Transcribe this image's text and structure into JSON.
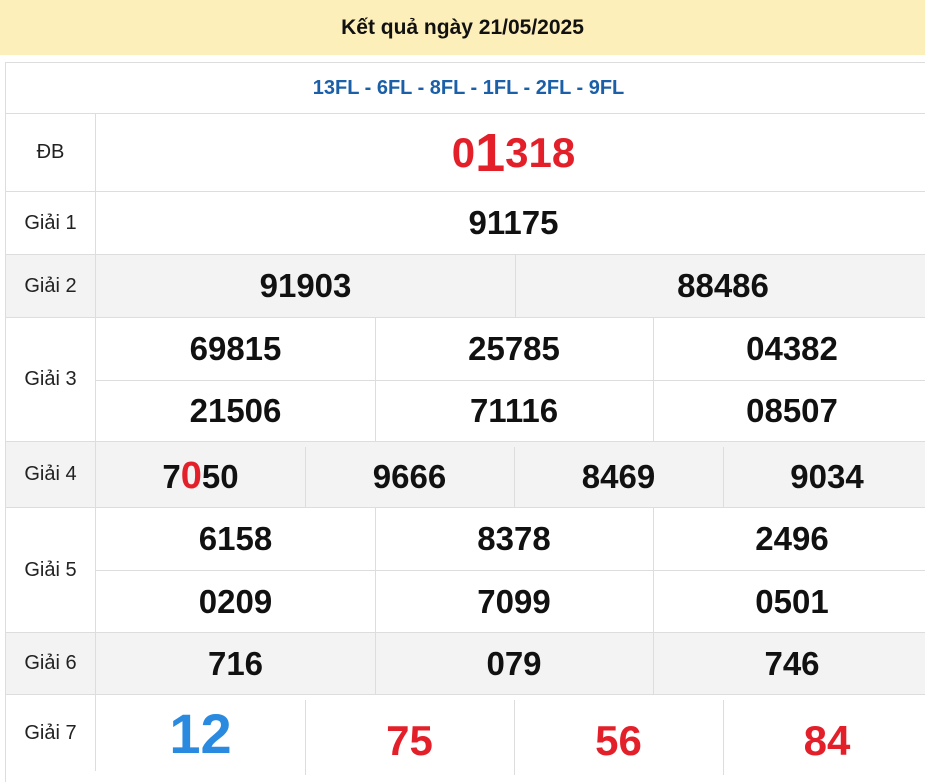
{
  "header": {
    "title": "Kết quả ngày 21/05/2025"
  },
  "codes": "13FL - 6FL - 8FL - 1FL - 2FL - 9FL",
  "colors": {
    "header_bg": "#fdefb9",
    "codes": "#1a5fa8",
    "special": "#e3202a",
    "giai7_first": "#2a8ae0"
  },
  "db": {
    "label": "ĐB",
    "p1": "0",
    "p2": "1",
    "p3": "318"
  },
  "g1": {
    "label": "Giải 1",
    "values": [
      "91175"
    ]
  },
  "g2": {
    "label": "Giải 2",
    "values": [
      "91903",
      "88486"
    ]
  },
  "g3": {
    "label": "Giải 3",
    "values": [
      "69815",
      "25785",
      "04382",
      "21506",
      "71116",
      "08507"
    ]
  },
  "g4": {
    "label": "Giải 4",
    "first": {
      "a": "7",
      "b": "0",
      "c": "50"
    },
    "values": [
      "7050",
      "9666",
      "8469",
      "9034"
    ]
  },
  "g5": {
    "label": "Giải 5",
    "values": [
      "6158",
      "8378",
      "2496",
      "0209",
      "7099",
      "0501"
    ]
  },
  "g6": {
    "label": "Giải 6",
    "values": [
      "716",
      "079",
      "746"
    ]
  },
  "g7": {
    "label": "Giải 7",
    "values": [
      "12",
      "75",
      "56",
      "84"
    ]
  }
}
